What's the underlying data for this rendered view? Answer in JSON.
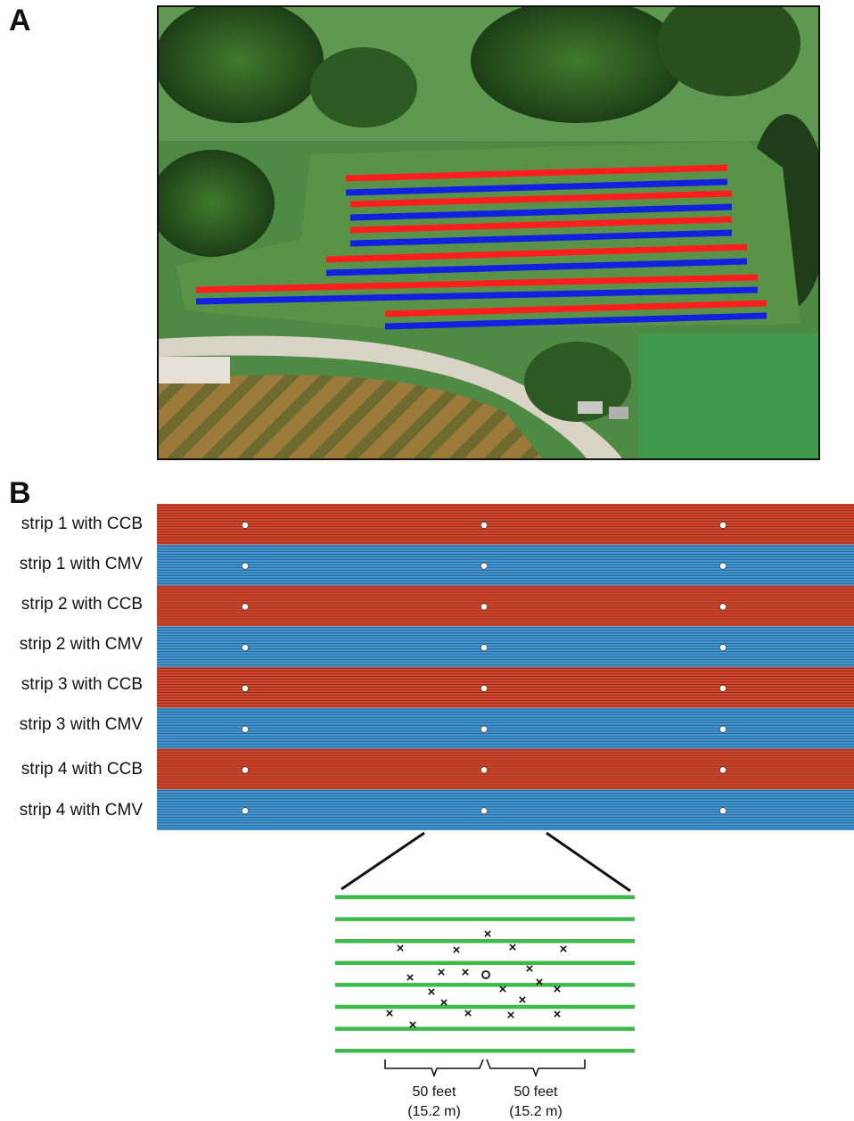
{
  "panel_a": {
    "label": "A",
    "colors": {
      "ccb": "#ff1e1e",
      "cmv": "#1420e0"
    }
  },
  "panel_b": {
    "label": "B",
    "strips": [
      {
        "label": "strip 1 with CCB",
        "type": "ccb"
      },
      {
        "label": "strip 1 with CMV",
        "type": "cmv"
      },
      {
        "label": "strip 2 with CCB",
        "type": "ccb"
      },
      {
        "label": "strip 2 with CMV",
        "type": "cmv"
      },
      {
        "label": "strip 3 with CCB",
        "type": "ccb"
      },
      {
        "label": "strip 3 with CMV",
        "type": "cmv"
      },
      {
        "label": "strip 4 with CCB",
        "type": "ccb"
      },
      {
        "label": "strip 4 with CMV",
        "type": "cmv"
      }
    ],
    "colors": {
      "ccb": "#d8452a",
      "cmv": "#3f99d9",
      "row_line": "#1a1a1a",
      "row_green": "#3fba4a"
    }
  },
  "zoom": {
    "left_distance": "50 feet",
    "left_distance_metric": "(15.2 m)",
    "right_distance": "50 feet",
    "right_distance_metric": "(15.2 m)"
  }
}
